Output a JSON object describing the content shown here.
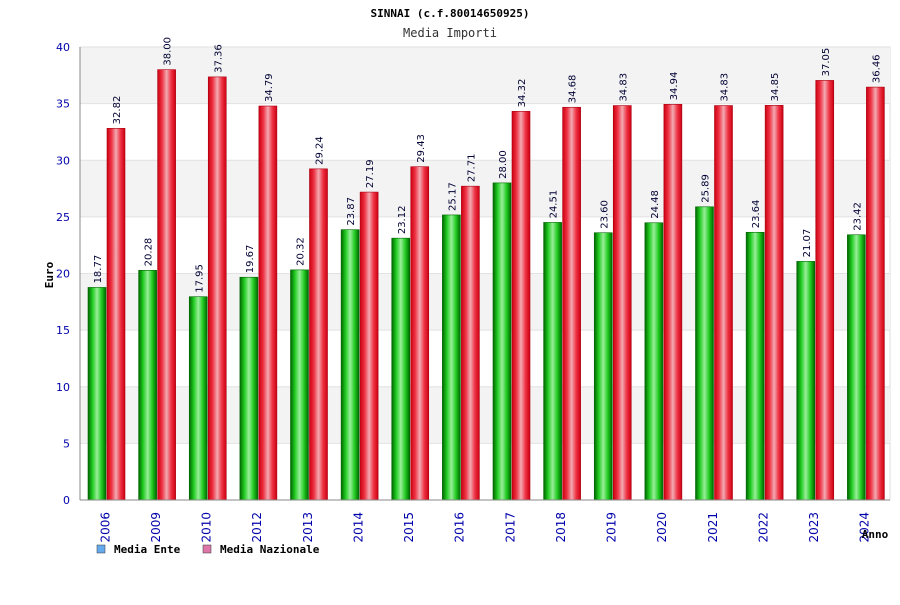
{
  "chart_data": {
    "type": "bar",
    "title": "SINNAI (c.f.80014650925)",
    "subtitle": "Media Importi",
    "ylabel": "Euro",
    "xlabel": "Anno",
    "ylim": [
      0,
      40
    ],
    "yticks": [
      0,
      5,
      10,
      15,
      20,
      25,
      30,
      35,
      40
    ],
    "grid": true,
    "legend_position": "bottom-left",
    "categories": [
      "2006",
      "2009",
      "2010",
      "2012",
      "2013",
      "2014",
      "2015",
      "2016",
      "2017",
      "2018",
      "2019",
      "2020",
      "2021",
      "2022",
      "2023",
      "2024"
    ],
    "series": [
      {
        "name": "Media Ente",
        "color": "#22bb22",
        "legend_color": "#66aaee",
        "values": [
          18.77,
          20.28,
          17.95,
          19.67,
          20.32,
          23.87,
          23.12,
          25.17,
          28.0,
          24.51,
          23.6,
          24.48,
          25.89,
          23.64,
          21.07,
          23.42
        ],
        "labels": [
          "18.77",
          "20.28",
          "17.95",
          "19.67",
          "20.32",
          "23.87",
          "23.12",
          "25.17",
          "28.00",
          "24.51",
          "23.60",
          "24.48",
          "25.89",
          "23.64",
          "21.07",
          "23.42"
        ]
      },
      {
        "name": "Media Nazionale",
        "color": "#ee2233",
        "legend_color": "#dd77aa",
        "values": [
          32.82,
          38.0,
          37.36,
          34.79,
          29.24,
          27.19,
          29.43,
          27.71,
          34.32,
          34.68,
          34.83,
          34.94,
          34.83,
          34.85,
          37.05,
          36.46
        ],
        "labels": [
          "32.82",
          "38.00",
          "37.36",
          "34.79",
          "29.24",
          "27.19",
          "29.43",
          "27.71",
          "34.32",
          "34.68",
          "34.83",
          "34.94",
          "34.83",
          "34.85",
          "37.05",
          "36.46"
        ]
      }
    ]
  }
}
